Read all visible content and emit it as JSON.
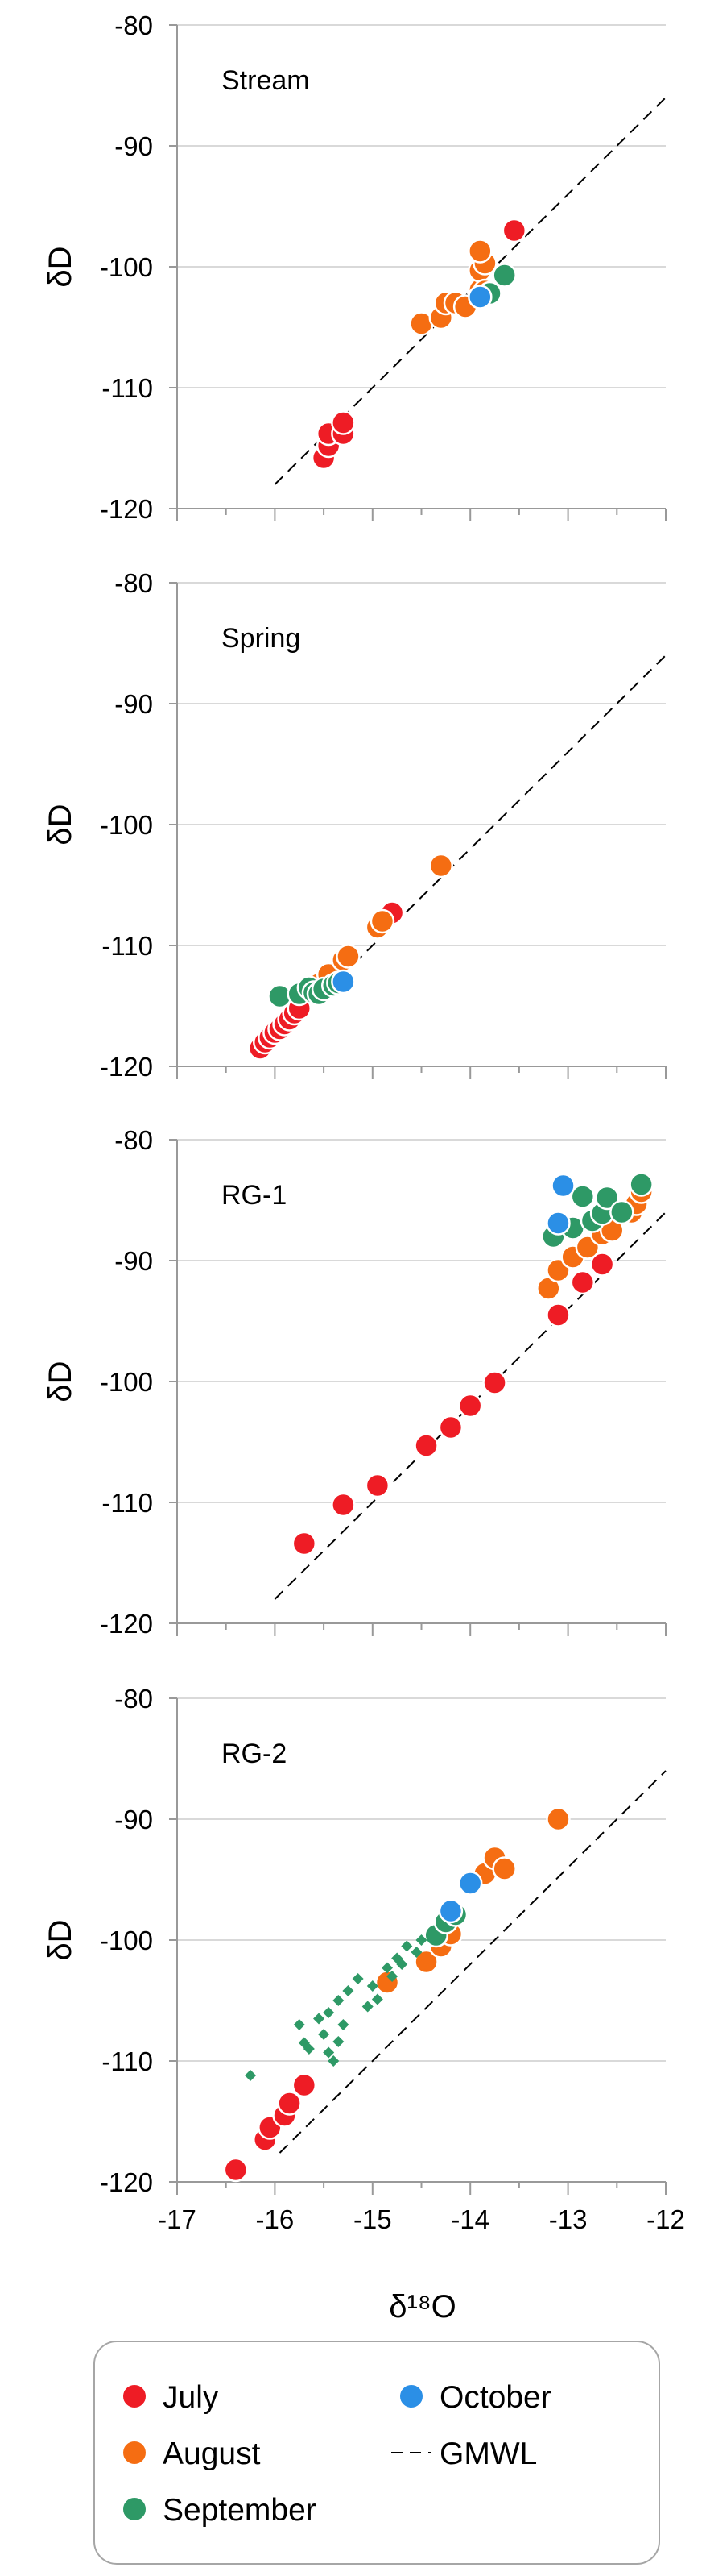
{
  "colors": {
    "July": "#ee1c25",
    "August": "#f56d12",
    "September": "#2e9966",
    "October": "#2b8fe6",
    "GMWL": "#000000",
    "grid": "#d9d9d9",
    "axis": "#999999",
    "legend_border": "#a6a6a6"
  },
  "legend": {
    "items": [
      {
        "label": "July",
        "key": "July",
        "marker": "circle"
      },
      {
        "label": "October",
        "key": "October",
        "marker": "circle"
      },
      {
        "label": "August",
        "key": "August",
        "marker": "circle"
      },
      {
        "label": "GMWL",
        "key": "GMWL",
        "marker": "dashed-line"
      },
      {
        "label": "September",
        "key": "September",
        "marker": "circle"
      }
    ]
  },
  "chart_data": [
    {
      "type": "scatter",
      "panel_label": "Stream",
      "xlabel": "",
      "ylabel": "δD",
      "xlim": [
        -17,
        -12
      ],
      "ylim": [
        -120,
        -80
      ],
      "xticks": [
        -17,
        -16,
        -15,
        -14,
        -13,
        -12
      ],
      "yticks": [
        -120,
        -110,
        -100,
        -90,
        -80
      ],
      "grid": "horizontal",
      "gmwl": {
        "slope": 8,
        "intercept": 10,
        "x_range": [
          -16,
          -12
        ]
      },
      "series": [
        {
          "name": "July",
          "points": [
            [
              -15.5,
              -115.8
            ],
            [
              -15.45,
              -114.8
            ],
            [
              -15.45,
              -113.8
            ],
            [
              -15.3,
              -113.8
            ],
            [
              -15.3,
              -112.9
            ],
            [
              -14.25,
              -102.9
            ],
            [
              -13.55,
              -97
            ]
          ]
        },
        {
          "name": "August",
          "points": [
            [
              -14.5,
              -104.7
            ],
            [
              -14.3,
              -104.2
            ],
            [
              -14.25,
              -103
            ],
            [
              -14.15,
              -103
            ],
            [
              -14.05,
              -103.3
            ],
            [
              -13.9,
              -101.9
            ],
            [
              -13.9,
              -100.3
            ],
            [
              -13.85,
              -99.7
            ],
            [
              -13.9,
              -98.7
            ],
            [
              -13.85,
              -102
            ]
          ]
        },
        {
          "name": "September",
          "points": [
            [
              -13.8,
              -102.2
            ],
            [
              -13.65,
              -100.7
            ]
          ]
        },
        {
          "name": "October",
          "points": [
            [
              -13.9,
              -102.5
            ]
          ]
        }
      ]
    },
    {
      "type": "scatter",
      "panel_label": "Spring",
      "xlabel": "",
      "ylabel": "δD",
      "xlim": [
        -17,
        -12
      ],
      "ylim": [
        -120,
        -80
      ],
      "xticks": [
        -17,
        -16,
        -15,
        -14,
        -13,
        -12
      ],
      "yticks": [
        -120,
        -110,
        -100,
        -90,
        -80
      ],
      "grid": "horizontal",
      "gmwl": {
        "slope": 8,
        "intercept": 10,
        "x_range": [
          -16,
          -12
        ]
      },
      "series": [
        {
          "name": "July",
          "points": [
            [
              -16.15,
              -118.5
            ],
            [
              -16.1,
              -118
            ],
            [
              -16.05,
              -117.6
            ],
            [
              -16,
              -117.2
            ],
            [
              -15.95,
              -116.9
            ],
            [
              -15.9,
              -116.5
            ],
            [
              -15.85,
              -116.1
            ],
            [
              -15.8,
              -115.6
            ],
            [
              -15.75,
              -115.2
            ],
            [
              -14.8,
              -107.3
            ]
          ]
        },
        {
          "name": "August",
          "points": [
            [
              -15.55,
              -113.2
            ],
            [
              -15.45,
              -112.4
            ],
            [
              -15.3,
              -111.2
            ],
            [
              -15.25,
              -110.9
            ],
            [
              -14.95,
              -108.5
            ],
            [
              -14.9,
              -108
            ],
            [
              -14.3,
              -103.4
            ]
          ]
        },
        {
          "name": "September",
          "points": [
            [
              -15.95,
              -114.2
            ],
            [
              -15.75,
              -114
            ],
            [
              -15.65,
              -113.5
            ],
            [
              -15.6,
              -113.9
            ],
            [
              -15.55,
              -114
            ],
            [
              -15.5,
              -113.6
            ],
            [
              -15.4,
              -113.3
            ],
            [
              -15.35,
              -113.1
            ]
          ]
        },
        {
          "name": "October",
          "points": [
            [
              -15.3,
              -113
            ]
          ]
        }
      ]
    },
    {
      "type": "scatter",
      "panel_label": "RG-1",
      "xlabel": "",
      "ylabel": "δD",
      "xlim": [
        -17,
        -12
      ],
      "ylim": [
        -120,
        -80
      ],
      "xticks": [
        -17,
        -16,
        -15,
        -14,
        -13,
        -12
      ],
      "yticks": [
        -120,
        -110,
        -100,
        -90,
        -80
      ],
      "grid": "horizontal",
      "gmwl": {
        "slope": 8,
        "intercept": 10,
        "x_range": [
          -16,
          -12
        ]
      },
      "series": [
        {
          "name": "July",
          "points": [
            [
              -15.7,
              -113.4
            ],
            [
              -15.3,
              -110.2
            ],
            [
              -14.95,
              -108.6
            ],
            [
              -14.45,
              -105.3
            ],
            [
              -14.2,
              -103.8
            ],
            [
              -14,
              -102
            ],
            [
              -13.75,
              -100.1
            ],
            [
              -13.1,
              -94.5
            ],
            [
              -12.85,
              -91.8
            ],
            [
              -12.65,
              -90.3
            ]
          ]
        },
        {
          "name": "August",
          "points": [
            [
              -13.2,
              -92.3
            ],
            [
              -13.1,
              -90.8
            ],
            [
              -12.95,
              -89.7
            ],
            [
              -12.8,
              -88.9
            ],
            [
              -12.65,
              -87.8
            ],
            [
              -12.55,
              -87.5
            ],
            [
              -12.35,
              -86
            ],
            [
              -12.3,
              -85.3
            ],
            [
              -12.25,
              -84.3
            ]
          ]
        },
        {
          "name": "September",
          "points": [
            [
              -13.15,
              -88
            ],
            [
              -12.95,
              -87.3
            ],
            [
              -12.85,
              -84.7
            ],
            [
              -12.75,
              -86.7
            ],
            [
              -12.65,
              -86.1
            ],
            [
              -12.6,
              -84.8
            ],
            [
              -12.45,
              -86
            ],
            [
              -12.25,
              -83.7
            ]
          ]
        },
        {
          "name": "October",
          "points": [
            [
              -13.05,
              -83.8
            ],
            [
              -13.1,
              -86.9
            ]
          ]
        }
      ]
    },
    {
      "type": "scatter",
      "panel_label": "RG-2",
      "xlabel": "δ¹⁸O",
      "ylabel": "δD",
      "xlim": [
        -17,
        -12
      ],
      "ylim": [
        -120,
        -80
      ],
      "xticks": [
        -17,
        -16,
        -15,
        -14,
        -13,
        -12
      ],
      "yticks": [
        -120,
        -110,
        -100,
        -90,
        -80
      ],
      "grid": "horizontal",
      "gmwl": {
        "slope": 8,
        "intercept": 10,
        "x_range": [
          -15.95,
          -12
        ]
      },
      "series": [
        {
          "name": "July",
          "points": [
            [
              -16.4,
              -119
            ],
            [
              -16.1,
              -116.5
            ],
            [
              -16.05,
              -115.5
            ],
            [
              -15.9,
              -114.5
            ],
            [
              -15.85,
              -113.5
            ],
            [
              -15.7,
              -112
            ],
            [
              -14.3,
              -100.3
            ]
          ]
        },
        {
          "name": "August",
          "points": [
            [
              -14.85,
              -103.5
            ],
            [
              -14.45,
              -101.8
            ],
            [
              -14.3,
              -100.5
            ],
            [
              -14.2,
              -99.5
            ],
            [
              -13.85,
              -94.5
            ],
            [
              -13.75,
              -93.2
            ],
            [
              -13.65,
              -94.1
            ],
            [
              -13.1,
              -90
            ]
          ]
        },
        {
          "name": "September",
          "marker": "circle",
          "points": [
            [
              -14.35,
              -99.6
            ],
            [
              -14.25,
              -98.5
            ],
            [
              -14.15,
              -97.9
            ]
          ]
        },
        {
          "name": "September",
          "marker": "diamond-small",
          "points": [
            [
              -16.25,
              -111.2
            ],
            [
              -15.75,
              -107
            ],
            [
              -15.7,
              -108.5
            ],
            [
              -15.65,
              -109
            ],
            [
              -15.55,
              -106.5
            ],
            [
              -15.5,
              -107.8
            ],
            [
              -15.45,
              -106
            ],
            [
              -15.45,
              -109.3
            ],
            [
              -15.4,
              -110
            ],
            [
              -15.35,
              -105
            ],
            [
              -15.35,
              -108.4
            ],
            [
              -15.3,
              -107
            ],
            [
              -15.25,
              -104.2
            ],
            [
              -15.15,
              -103.2
            ],
            [
              -15.05,
              -105.5
            ],
            [
              -15,
              -103.8
            ],
            [
              -14.95,
              -104.9
            ],
            [
              -14.85,
              -102.3
            ],
            [
              -14.8,
              -103
            ],
            [
              -14.75,
              -101.5
            ],
            [
              -14.7,
              -102
            ],
            [
              -14.65,
              -100.5
            ],
            [
              -14.55,
              -101
            ],
            [
              -14.5,
              -100
            ]
          ]
        },
        {
          "name": "October",
          "points": [
            [
              -14.2,
              -97.6
            ],
            [
              -14,
              -95.3
            ]
          ]
        }
      ]
    }
  ]
}
